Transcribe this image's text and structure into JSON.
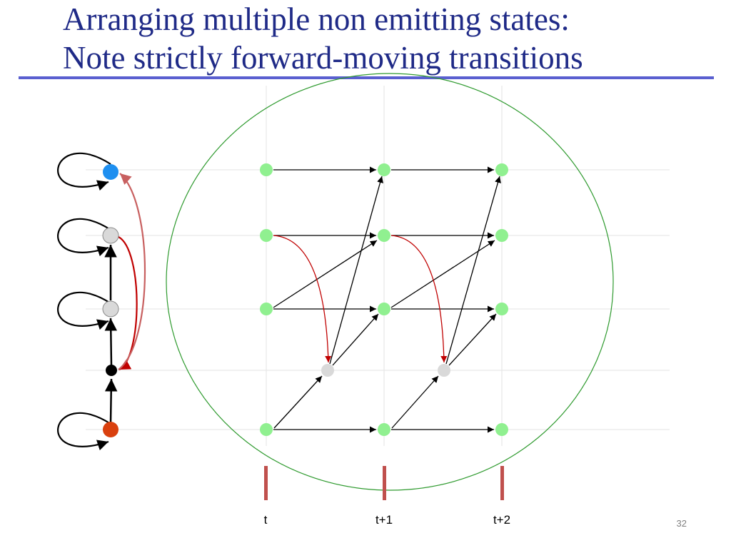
{
  "slide": {
    "title_line1": "Arranging multiple non emitting states:",
    "title_line2": "Note strictly forward-moving transitions",
    "page_number": "32"
  },
  "time_axis": {
    "labels": [
      "t",
      "t+1",
      "t+2"
    ]
  },
  "colors": {
    "title": "#1f2a87",
    "rule": "#5a5fd0",
    "emitting_state": "#90f090",
    "non_emitting_state": "#d9d9d9",
    "start_state": "#1e8ff0",
    "end_state": "#d9400e",
    "non_emitting_small": "#000000",
    "skip_transition": "#c00000",
    "back_transition": "#c86060",
    "circle_outline": "#2e9a2e",
    "time_marker": "#c0504d"
  }
}
